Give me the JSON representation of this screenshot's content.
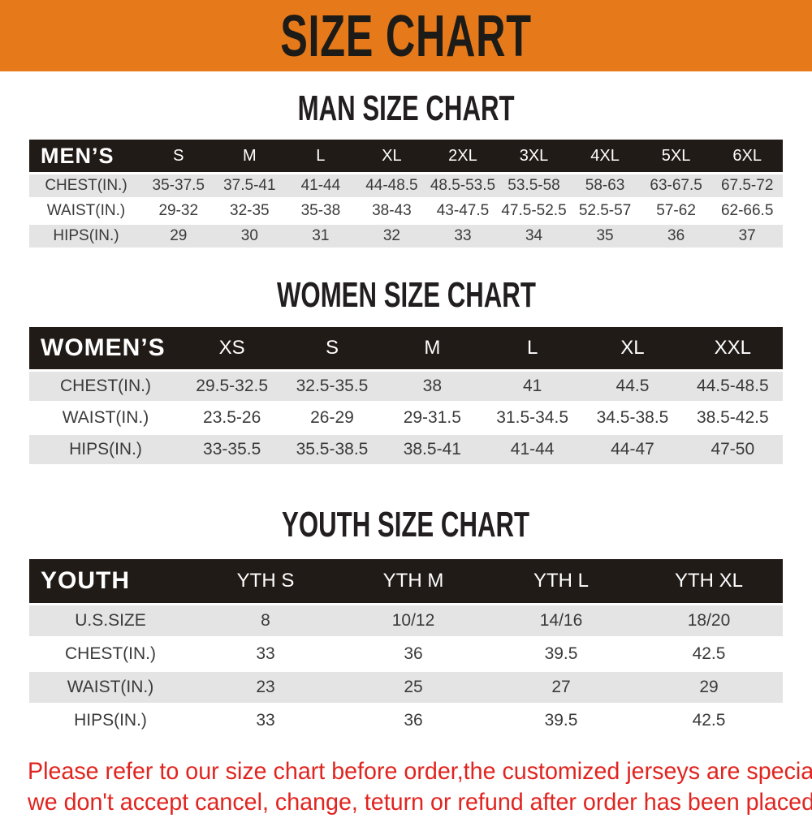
{
  "banner": {
    "title": "SIZE CHART"
  },
  "colors": {
    "banner_bg": "#e6791a",
    "table_header_bg": "#211b18",
    "row_alt_bg": "#e4e4e4",
    "disclaimer_red": "#e0241f"
  },
  "sections": [
    {
      "id": "men",
      "title": "MAN SIZE CHART",
      "table": {
        "header": [
          "MEN’S",
          "S",
          "M",
          "L",
          "XL",
          "2XL",
          "3XL",
          "4XL",
          "5XL",
          "6XL"
        ],
        "rows": [
          {
            "label": "CHEST(IN.)",
            "values": [
              "35-37.5",
              "37.5-41",
              "41-44",
              "44-48.5",
              "48.5-53.5",
              "53.5-58",
              "58-63",
              "63-67.5",
              "67.5-72"
            ]
          },
          {
            "label": "WAIST(IN.)",
            "values": [
              "29-32",
              "32-35",
              "35-38",
              "38-43",
              "43-47.5",
              "47.5-52.5",
              "52.5-57",
              "57-62",
              "62-66.5"
            ]
          },
          {
            "label": "HIPS(IN.)",
            "values": [
              "29",
              "30",
              "31",
              "32",
              "33",
              "34",
              "35",
              "36",
              "37"
            ]
          }
        ]
      }
    },
    {
      "id": "women",
      "title": "WOMEN SIZE CHART",
      "table": {
        "header": [
          "WOMEN’S",
          "XS",
          "S",
          "M",
          "L",
          "XL",
          "XXL"
        ],
        "rows": [
          {
            "label": "CHEST(IN.)",
            "values": [
              "29.5-32.5",
              "32.5-35.5",
              "38",
              "41",
              "44.5",
              "44.5-48.5"
            ]
          },
          {
            "label": "WAIST(IN.)",
            "values": [
              "23.5-26",
              "26-29",
              "29-31.5",
              "31.5-34.5",
              "34.5-38.5",
              "38.5-42.5"
            ]
          },
          {
            "label": "HIPS(IN.)",
            "values": [
              "33-35.5",
              "35.5-38.5",
              "38.5-41",
              "41-44",
              "44-47",
              "47-50"
            ]
          }
        ]
      }
    },
    {
      "id": "youth",
      "title": "YOUTH SIZE CHART",
      "table": {
        "header": [
          "YOUTH",
          "YTH S",
          "YTH M",
          "YTH L",
          "YTH XL"
        ],
        "rows": [
          {
            "label": "U.S.SIZE",
            "values": [
              "8",
              "10/12",
              "14/16",
              "18/20"
            ]
          },
          {
            "label": "CHEST(IN.)",
            "values": [
              "33",
              "36",
              "39.5",
              "42.5"
            ]
          },
          {
            "label": "WAIST(IN.)",
            "values": [
              "23",
              "25",
              "27",
              "29"
            ]
          },
          {
            "label": "HIPS(IN.)",
            "values": [
              "33",
              "36",
              "39.5",
              "42.5"
            ]
          }
        ]
      }
    }
  ],
  "disclaimer": {
    "line1": "Please refer to our size chart before order,the customized jerseys are special products,",
    "line2": "we don't accept cancel, change, teturn or refund after order has been placed!"
  }
}
